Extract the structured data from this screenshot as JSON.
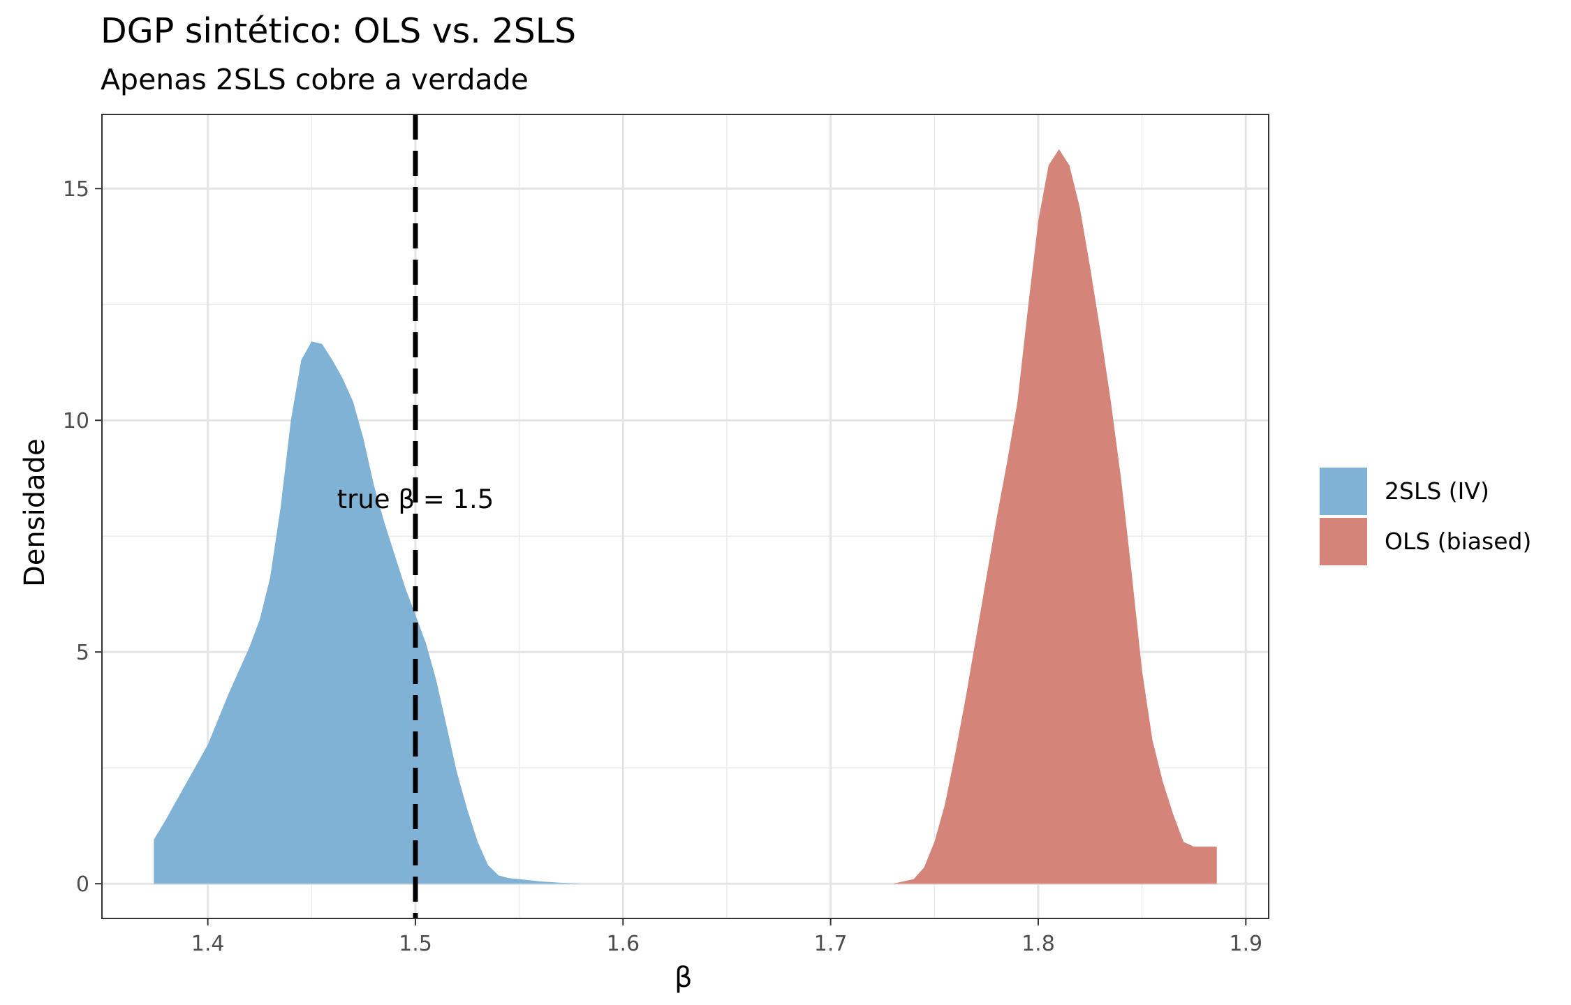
{
  "title": "DGP sintético: OLS vs. 2SLS",
  "subtitle": "Apenas 2SLS cobre a verdade",
  "chart_data": {
    "type": "area",
    "title": "DGP sintético: OLS vs. 2SLS",
    "subtitle": "Apenas 2SLS cobre a verdade",
    "xlabel": "β",
    "ylabel": "Densidade",
    "xlim": [
      1.349,
      1.911
    ],
    "ylim": [
      -0.75,
      16.6
    ],
    "x_ticks": [
      1.4,
      1.5,
      1.6,
      1.7,
      1.8,
      1.9
    ],
    "x_tick_labels": [
      "1.4",
      "1.5",
      "1.6",
      "1.7",
      "1.8",
      "1.9"
    ],
    "y_ticks": [
      0,
      5,
      10,
      15
    ],
    "y_tick_labels": [
      "0",
      "5",
      "10",
      "15"
    ],
    "grid": true,
    "legend_position": "right",
    "annotation": {
      "text": "true β = 1.5",
      "x": 1.5,
      "y": 8.3
    },
    "reference_line": {
      "x": 1.5,
      "style": "dashed",
      "color": "#000000"
    },
    "series": [
      {
        "name": "2SLS (IV)",
        "color": "#7fb2d5",
        "x": [
          1.374,
          1.38,
          1.39,
          1.4,
          1.41,
          1.42,
          1.425,
          1.43,
          1.435,
          1.44,
          1.445,
          1.45,
          1.455,
          1.46,
          1.465,
          1.47,
          1.475,
          1.48,
          1.485,
          1.49,
          1.495,
          1.5,
          1.505,
          1.51,
          1.515,
          1.52,
          1.525,
          1.53,
          1.535,
          1.54,
          1.545,
          1.55,
          1.56,
          1.57,
          1.58
        ],
        "y": [
          0.95,
          1.4,
          2.2,
          3.0,
          4.1,
          5.1,
          5.7,
          6.6,
          8.1,
          10.0,
          11.3,
          11.7,
          11.65,
          11.3,
          10.9,
          10.4,
          9.6,
          8.6,
          7.8,
          7.1,
          6.4,
          5.8,
          5.2,
          4.4,
          3.4,
          2.4,
          1.6,
          0.9,
          0.4,
          0.18,
          0.12,
          0.1,
          0.05,
          0.02,
          0.0
        ]
      },
      {
        "name": "OLS (biased)",
        "color": "#d5847a",
        "x": [
          1.73,
          1.74,
          1.745,
          1.75,
          1.755,
          1.76,
          1.765,
          1.77,
          1.775,
          1.78,
          1.785,
          1.79,
          1.795,
          1.8,
          1.805,
          1.81,
          1.815,
          1.82,
          1.825,
          1.83,
          1.835,
          1.84,
          1.845,
          1.85,
          1.855,
          1.86,
          1.865,
          1.87,
          1.875,
          1.88,
          1.886
        ],
        "y": [
          0.0,
          0.1,
          0.35,
          0.9,
          1.7,
          2.8,
          4.0,
          5.3,
          6.6,
          7.9,
          9.1,
          10.4,
          12.4,
          14.3,
          15.5,
          15.85,
          15.5,
          14.6,
          13.3,
          11.9,
          10.4,
          8.7,
          6.7,
          4.6,
          3.1,
          2.2,
          1.5,
          0.9,
          0.8,
          0.8,
          0.8
        ]
      }
    ]
  }
}
